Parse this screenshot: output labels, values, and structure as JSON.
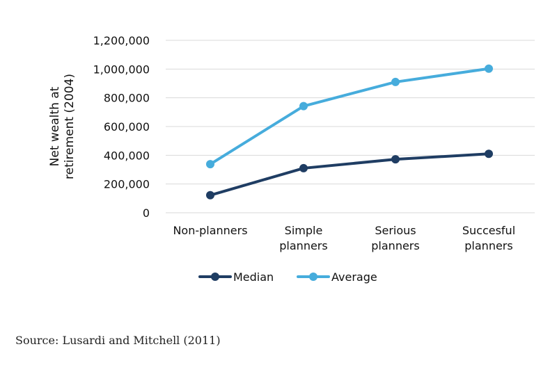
{
  "chart_data": {
    "type": "line",
    "categories": [
      [
        "Non-planners"
      ],
      [
        "Simple",
        "planners"
      ],
      [
        "Serious",
        "planners"
      ],
      [
        "Succesful",
        "planners"
      ]
    ],
    "series": [
      {
        "name": "Median",
        "values": [
          122000,
          310000,
          372000,
          410000
        ],
        "color": "#1f3d63"
      },
      {
        "name": "Average",
        "values": [
          338000,
          742000,
          910000,
          1003000
        ],
        "color": "#46acdc"
      }
    ],
    "ylabel": [
      "Net wealth at",
      "retirement (2004)"
    ],
    "ylim": [
      0,
      1200000
    ],
    "yticks": [
      0,
      200000,
      400000,
      600000,
      800000,
      1000000,
      1200000
    ],
    "ytick_labels": [
      "0",
      "200,000",
      "400,000",
      "600,000",
      "800,000",
      "1,000,000",
      "1,200,000"
    ],
    "grid": true,
    "legend_position": "bottom"
  },
  "source": "Source: Lusardi and Mitchell (2011)",
  "colors": {
    "grid": "#d9d9d9",
    "median": "#1f3d63",
    "average": "#46acdc"
  }
}
